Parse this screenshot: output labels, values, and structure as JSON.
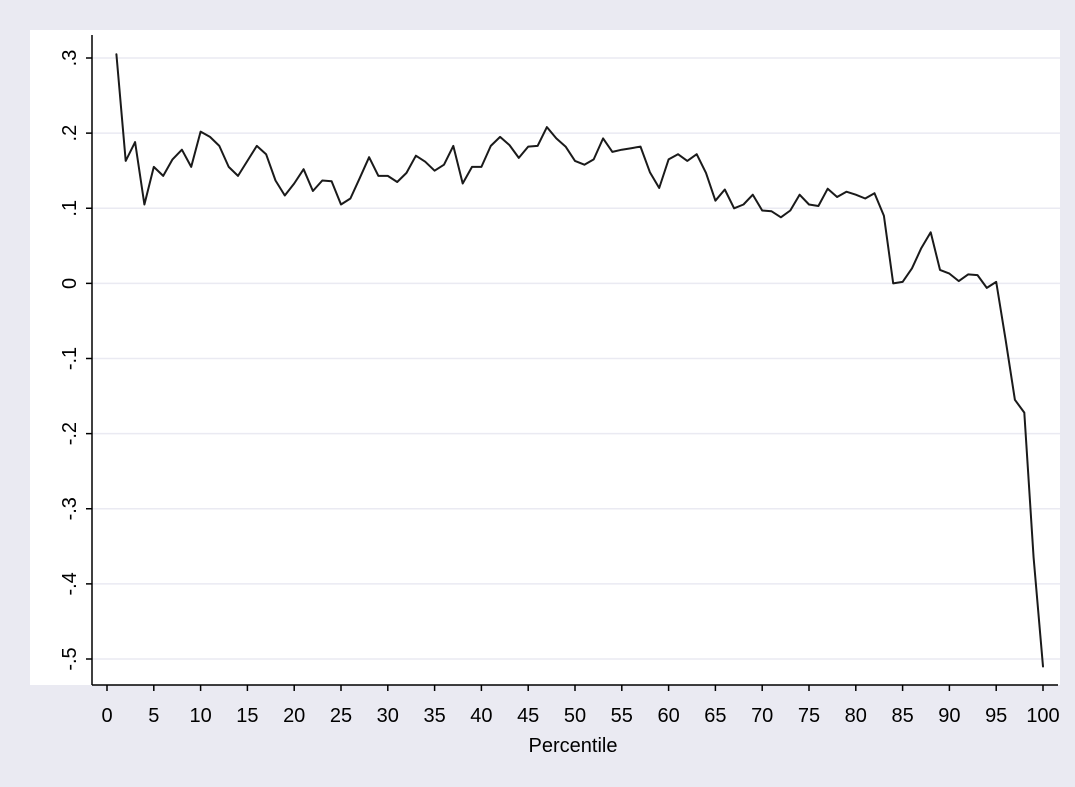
{
  "colors": {
    "outer_background": "#eaeaf2",
    "plot_background": "#ffffff",
    "gridline": "#eaeaf2",
    "axis": "#000000",
    "line": "#1a1a1a"
  },
  "chart_data": {
    "type": "line",
    "title": "",
    "xlabel": "Percentile",
    "ylabel": "",
    "xlim": [
      0,
      100
    ],
    "ylim": [
      -0.5,
      0.3
    ],
    "grid": "horizontal",
    "x_ticks": [
      0,
      5,
      10,
      15,
      20,
      25,
      30,
      35,
      40,
      45,
      50,
      55,
      60,
      65,
      70,
      75,
      80,
      85,
      90,
      95,
      100
    ],
    "y_ticks": [
      {
        "value": 0.3,
        "label": ".3"
      },
      {
        "value": 0.2,
        "label": ".2"
      },
      {
        "value": 0.1,
        "label": ".1"
      },
      {
        "value": 0,
        "label": "0"
      },
      {
        "value": -0.1,
        "label": "-.1"
      },
      {
        "value": -0.2,
        "label": "-.2"
      },
      {
        "value": -0.3,
        "label": "-.3"
      },
      {
        "value": -0.4,
        "label": "-.4"
      },
      {
        "value": -0.5,
        "label": "-.5"
      }
    ],
    "series": [
      {
        "x": [
          1,
          2,
          3,
          4,
          5,
          6,
          7,
          8,
          9,
          10,
          11,
          12,
          13,
          14,
          15,
          16,
          17,
          18,
          19,
          20,
          21,
          22,
          23,
          24,
          25,
          26,
          27,
          28,
          29,
          30,
          31,
          32,
          33,
          34,
          35,
          36,
          37,
          38,
          39,
          40,
          41,
          42,
          43,
          44,
          45,
          46,
          47,
          48,
          49,
          50,
          51,
          52,
          53,
          54,
          55,
          56,
          57,
          58,
          59,
          60,
          61,
          62,
          63,
          64,
          65,
          66,
          67,
          68,
          69,
          70,
          71,
          72,
          73,
          74,
          75,
          76,
          77,
          78,
          79,
          80,
          81,
          82,
          83,
          84,
          85,
          86,
          87,
          88,
          89,
          90,
          91,
          92,
          93,
          94,
          95,
          96,
          97,
          98,
          99,
          100
        ],
        "values": [
          0.305,
          0.163,
          0.188,
          0.105,
          0.155,
          0.143,
          0.165,
          0.178,
          0.155,
          0.202,
          0.195,
          0.183,
          0.155,
          0.143,
          0.163,
          0.183,
          0.172,
          0.137,
          0.117,
          0.133,
          0.152,
          0.123,
          0.137,
          0.136,
          0.105,
          0.113,
          0.14,
          0.168,
          0.143,
          0.143,
          0.135,
          0.147,
          0.17,
          0.162,
          0.15,
          0.158,
          0.183,
          0.133,
          0.155,
          0.155,
          0.183,
          0.195,
          0.184,
          0.167,
          0.182,
          0.183,
          0.208,
          0.193,
          0.182,
          0.163,
          0.158,
          0.165,
          0.193,
          0.175,
          0.178,
          0.18,
          0.182,
          0.148,
          0.127,
          0.165,
          0.172,
          0.163,
          0.172,
          0.147,
          0.11,
          0.125,
          0.1,
          0.105,
          0.118,
          0.097,
          0.096,
          0.088,
          0.097,
          0.118,
          0.105,
          0.103,
          0.126,
          0.115,
          0.122,
          0.118,
          0.113,
          0.12,
          0.09,
          0.0,
          0.002,
          0.02,
          0.047,
          0.068,
          0.018,
          0.013,
          0.003,
          0.012,
          0.011,
          -0.006,
          0.002,
          -0.075,
          -0.155,
          -0.172,
          -0.365,
          -0.51
        ]
      }
    ]
  }
}
